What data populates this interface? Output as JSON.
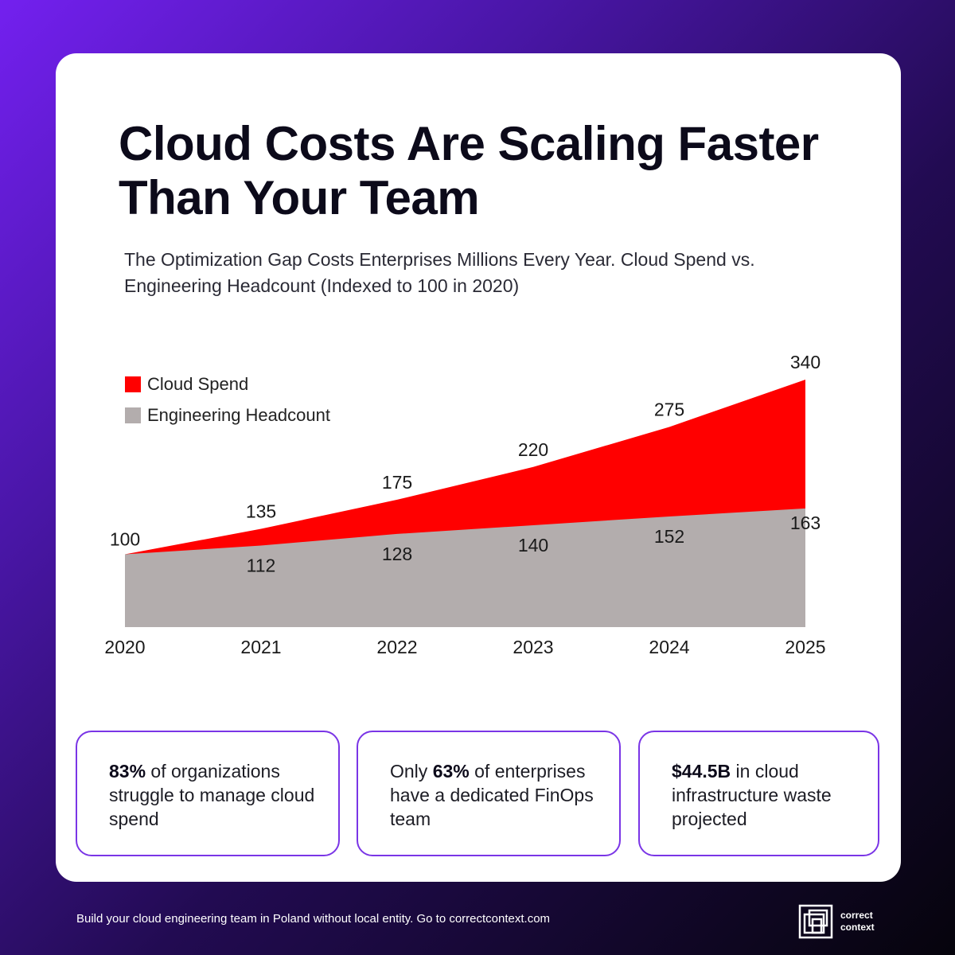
{
  "title": "Cloud Costs Are Scaling Faster Than Your Team",
  "subtitle": "The Optimization Gap Costs Enterprises Millions Every Year. Cloud Spend vs. Engineering Headcount (Indexed to 100 in 2020)",
  "colors": {
    "cloud_spend": "#ff0000",
    "headcount": "#b3adad",
    "accent_border": "#7a35e6"
  },
  "chart_data": {
    "type": "area",
    "x": [
      "2020",
      "2021",
      "2022",
      "2023",
      "2024",
      "2025"
    ],
    "series": [
      {
        "name": "Cloud Spend",
        "values": [
          100,
          135,
          175,
          220,
          275,
          340
        ],
        "color": "#ff0000"
      },
      {
        "name": "Engineering Headcount",
        "values": [
          100,
          112,
          128,
          140,
          152,
          163
        ],
        "color": "#b3adad"
      }
    ],
    "legend_position": "top-left",
    "ylim": [
      0,
      340
    ],
    "grid": false
  },
  "stats": [
    {
      "bold": "83%",
      "before": "",
      "after": " of organizations struggle to manage cloud spend"
    },
    {
      "bold": "63%",
      "before": "Only ",
      "after": " of enterprises have a dedicated FinOps team"
    },
    {
      "bold": "$44.5B",
      "before": "",
      "after": " in cloud infrastructure waste projected"
    }
  ],
  "footer": {
    "text": "Build your cloud engineering team in Poland without local entity. Go to correctcontext.com",
    "logo_line1": "correct",
    "logo_line2": "context"
  }
}
